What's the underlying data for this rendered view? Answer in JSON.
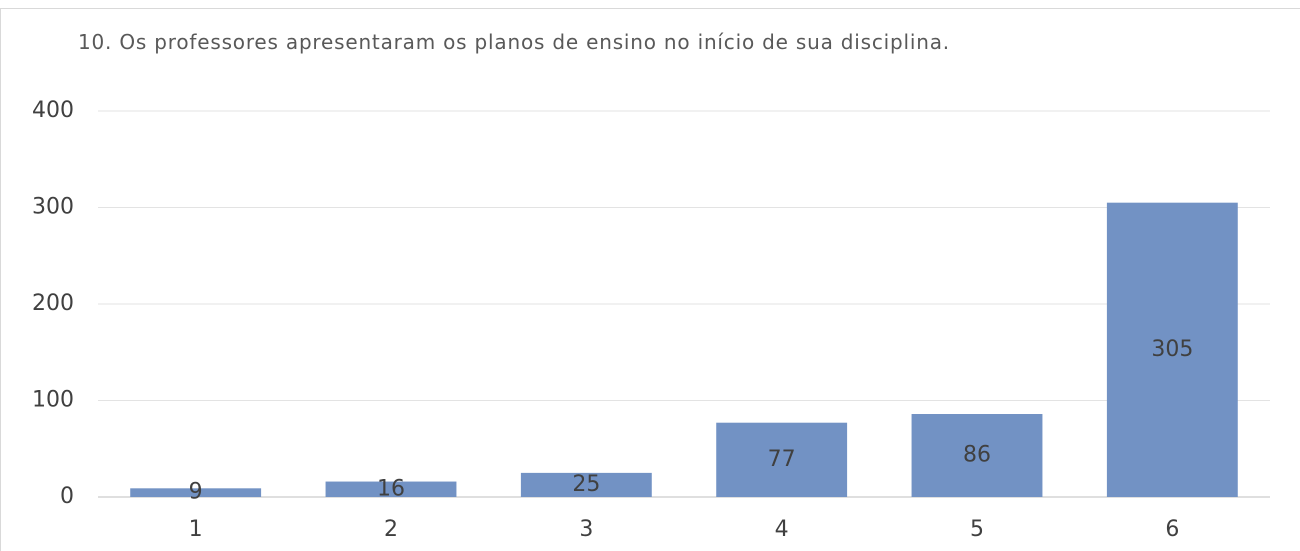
{
  "chart_data": {
    "type": "bar",
    "title": "10. Os professores apresentaram os planos de ensino no início de sua disciplina.",
    "categories": [
      "1",
      "2",
      "3",
      "4",
      "5",
      "6"
    ],
    "values": [
      9,
      16,
      25,
      77,
      86,
      305
    ],
    "color": "#7292c4",
    "ylim": [
      0,
      400
    ],
    "yticks": [
      0,
      100,
      200,
      300,
      400
    ],
    "grid": true
  }
}
